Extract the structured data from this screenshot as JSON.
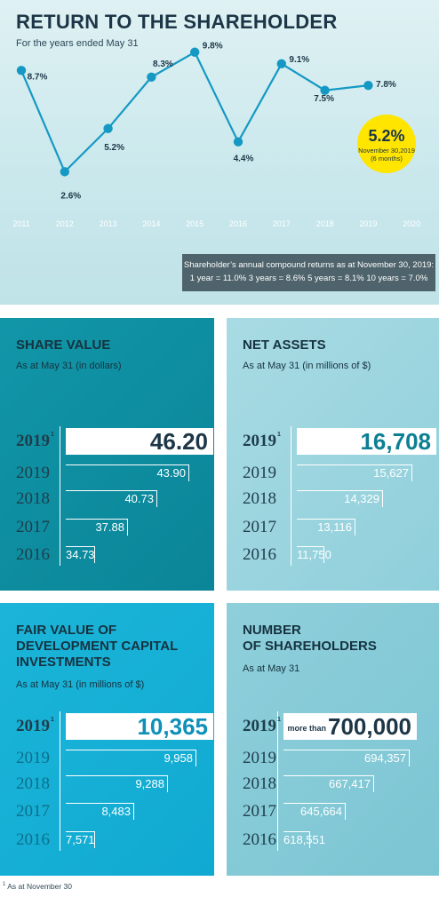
{
  "header": {
    "title": "RETURN TO THE SHAREHOLDER",
    "subtitle": "For the years ended May 31"
  },
  "chart_data": [
    {
      "type": "line",
      "title": "RETURN TO THE SHAREHOLDER",
      "subtitle": "For the years ended May 31",
      "categories": [
        "2011",
        "2012",
        "2013",
        "2014",
        "2015",
        "2016",
        "2017",
        "2018",
        "2019",
        "2020"
      ],
      "series": [
        {
          "values": [
            8.7,
            2.6,
            5.2,
            8.3,
            9.8,
            4.4,
            9.1,
            7.5,
            7.8,
            null
          ],
          "labels": [
            "8.7%",
            "2.6%",
            "5.2%",
            "8.3%",
            "9.8%",
            "4.4%",
            "9.1%",
            "7.5%",
            "7.8%",
            ""
          ]
        }
      ],
      "callout": {
        "value": "5.2%",
        "line1": "November 30,2019",
        "line2": "(6 months)",
        "color": "#ffe500"
      },
      "ylim": [
        0,
        11
      ],
      "line_color": "#1599c4",
      "marker_color": "#1599c4"
    },
    {
      "type": "bar",
      "title": "SHARE VALUE",
      "subtitle": "As at May 31 (in dollars)",
      "categories": [
        "2019",
        "2019",
        "2018",
        "2017",
        "2016"
      ],
      "footnote_first": true,
      "values": [
        46.2,
        43.9,
        40.73,
        37.88,
        34.73
      ],
      "labels": [
        "46.20",
        "43.90",
        "40.73",
        "37.88",
        "34.73"
      ]
    },
    {
      "type": "bar",
      "title": "NET ASSETS",
      "subtitle": "As at May 31 (in millions of $)",
      "categories": [
        "2019",
        "2019",
        "2018",
        "2017",
        "2016"
      ],
      "footnote_first": true,
      "values": [
        16708,
        15627,
        14329,
        13116,
        11750
      ],
      "labels": [
        "16,708",
        "15,627",
        "14,329",
        "13,116",
        "11,750"
      ]
    },
    {
      "type": "bar",
      "title": "FAIR VALUE OF DEVELOPMENT CAPITAL INVESTMENTS",
      "subtitle": "As at May 31 (in millions of $)",
      "categories": [
        "2019",
        "2019",
        "2018",
        "2017",
        "2016"
      ],
      "footnote_first": true,
      "values": [
        10365,
        9958,
        9288,
        8483,
        7571
      ],
      "labels": [
        "10,365",
        "9,958",
        "9,288",
        "8,483",
        "7,571"
      ]
    },
    {
      "type": "bar",
      "title": "NUMBER OF SHAREHOLDERS",
      "subtitle": "As at May 31",
      "categories": [
        "2019",
        "2019",
        "2018",
        "2017",
        "2016"
      ],
      "footnote_first": true,
      "values": [
        700000,
        694357,
        667417,
        645664,
        618551
      ],
      "labels": [
        "700,000",
        "694,357",
        "667,417",
        "645,664",
        "618,551"
      ],
      "first_prefix": "more than"
    }
  ],
  "note": {
    "line1": "Shareholder’s annual compound returns as at November 30, 2019:",
    "line2": "1 year = 11.0%    3 years = 8.6%    5 years = 8.1%    10 years = 7.0%"
  },
  "panels": {
    "share": {
      "title": "SHARE VALUE",
      "subtitle": "As at May 31 (in dollars)"
    },
    "net": {
      "title": "NET ASSETS",
      "subtitle": "As at May 31 (in millions of $)"
    },
    "fair": {
      "title_l1": "FAIR VALUE OF",
      "title_l2": "DEVELOPMENT CAPITAL",
      "title_l3": "INVESTMENTS",
      "subtitle": "As at May 31 (in millions of $)"
    },
    "num": {
      "title_l1": "NUMBER",
      "title_l2": "OF SHAREHOLDERS",
      "subtitle": "As at May 31"
    }
  },
  "footnote": {
    "marker": "1",
    "text": "As at November 30"
  },
  "colors": {
    "dark_panel": "#0b8598",
    "light_panel": "#8fcfdb",
    "fair_panel": "#10a9d1",
    "callout": "#ffe500",
    "note_box": "#4e636b"
  }
}
